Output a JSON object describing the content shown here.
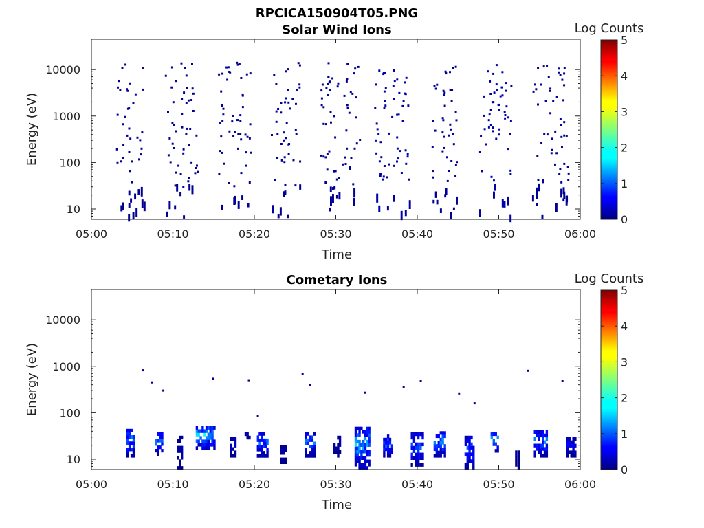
{
  "figure": {
    "title": "RPCICA150904T05.PNG"
  },
  "colormap": {
    "name": "jet",
    "colorbar_label": "Log Counts",
    "range": [
      0,
      5
    ],
    "ticks": [
      "0",
      "1",
      "2",
      "3",
      "4",
      "5"
    ]
  },
  "chart_data": [
    {
      "type": "heatmap",
      "title": "Solar Wind Ions",
      "xlabel": "Time",
      "ylabel": "Energy (eV)",
      "xlim": [
        "05:00",
        "06:00"
      ],
      "ylim": [
        6,
        45000
      ],
      "y_scale": "log",
      "x_ticks": [
        "05:00",
        "05:10",
        "05:20",
        "05:30",
        "05:40",
        "05:50",
        "06:00"
      ],
      "y_ticks": [
        "10",
        "100",
        "1000",
        "10000"
      ],
      "colorbar": {
        "label": "Log Counts",
        "min": 0,
        "max": 5
      },
      "bursts": [
        {
          "start_min": 3.0,
          "end_min": 6.5,
          "mean_log_counts": 0.1
        },
        {
          "start_min": 9.0,
          "end_min": 13.0,
          "mean_log_counts": 0.1
        },
        {
          "start_min": 15.5,
          "end_min": 19.5,
          "mean_log_counts": 0.1
        },
        {
          "start_min": 22.0,
          "end_min": 25.5,
          "mean_log_counts": 0.1
        },
        {
          "start_min": 28.0,
          "end_min": 33.0,
          "mean_log_counts": 0.1
        },
        {
          "start_min": 34.5,
          "end_min": 39.0,
          "mean_log_counts": 0.2
        },
        {
          "start_min": 41.5,
          "end_min": 45.0,
          "mean_log_counts": 0.1
        },
        {
          "start_min": 47.5,
          "end_min": 51.5,
          "mean_log_counts": 0.2
        },
        {
          "start_min": 54.0,
          "end_min": 58.5,
          "mean_log_counts": 0.1
        }
      ],
      "energy_range_eV": [
        6,
        14000
      ]
    },
    {
      "type": "heatmap",
      "title": "Cometary Ions",
      "xlabel": "Time",
      "ylabel": "Energy (eV)",
      "xlim": [
        "05:00",
        "06:00"
      ],
      "ylim": [
        6,
        45000
      ],
      "y_scale": "log",
      "x_ticks": [
        "05:00",
        "05:10",
        "05:20",
        "05:30",
        "05:40",
        "05:50",
        "06:00"
      ],
      "y_ticks": [
        "10",
        "100",
        "1000",
        "10000"
      ],
      "colorbar": {
        "label": "Log Counts",
        "min": 0,
        "max": 5
      },
      "patches": [
        {
          "start_min": 4.3,
          "end_min": 5.3,
          "e_low": 11,
          "e_high": 45,
          "peak_log_counts": 1.8
        },
        {
          "start_min": 7.8,
          "end_min": 8.8,
          "e_low": 12,
          "e_high": 38,
          "peak_log_counts": 1.6
        },
        {
          "start_min": 10.5,
          "end_min": 11.2,
          "e_low": 6,
          "e_high": 32,
          "peak_log_counts": 0.3
        },
        {
          "start_min": 12.8,
          "end_min": 15.2,
          "e_low": 16,
          "e_high": 52,
          "peak_log_counts": 2.2
        },
        {
          "start_min": 17.0,
          "end_min": 17.8,
          "e_low": 11,
          "e_high": 30,
          "peak_log_counts": 0.6
        },
        {
          "start_min": 18.8,
          "end_min": 19.5,
          "e_low": 27,
          "e_high": 38,
          "peak_log_counts": 0.5
        },
        {
          "start_min": 20.3,
          "end_min": 21.7,
          "e_low": 11,
          "e_high": 38,
          "peak_log_counts": 1.4
        },
        {
          "start_min": 23.2,
          "end_min": 24.0,
          "e_low": 8,
          "e_high": 20,
          "peak_log_counts": 0.3
        },
        {
          "start_min": 26.2,
          "end_min": 27.5,
          "e_low": 11,
          "e_high": 38,
          "peak_log_counts": 1.5
        },
        {
          "start_min": 29.7,
          "end_min": 30.6,
          "e_low": 11,
          "e_high": 32,
          "peak_log_counts": 0.4
        },
        {
          "start_min": 32.3,
          "end_min": 34.2,
          "e_low": 6,
          "e_high": 50,
          "peak_log_counts": 1.9
        },
        {
          "start_min": 35.8,
          "end_min": 37.0,
          "e_low": 11,
          "e_high": 34,
          "peak_log_counts": 1.4
        },
        {
          "start_min": 39.2,
          "end_min": 40.8,
          "e_low": 7,
          "e_high": 38,
          "peak_log_counts": 1.3
        },
        {
          "start_min": 42.0,
          "end_min": 43.5,
          "e_low": 11,
          "e_high": 40,
          "peak_log_counts": 1.6
        },
        {
          "start_min": 45.8,
          "end_min": 47.0,
          "e_low": 6,
          "e_high": 32,
          "peak_log_counts": 1.2
        },
        {
          "start_min": 49.0,
          "end_min": 50.0,
          "e_low": 14,
          "e_high": 38,
          "peak_log_counts": 1.8
        },
        {
          "start_min": 52.0,
          "end_min": 52.6,
          "e_low": 6,
          "e_high": 18,
          "peak_log_counts": 0.2
        },
        {
          "start_min": 54.3,
          "end_min": 56.0,
          "e_low": 11,
          "e_high": 42,
          "peak_log_counts": 1.5
        },
        {
          "start_min": 58.3,
          "end_min": 59.5,
          "e_low": 11,
          "e_high": 30,
          "peak_log_counts": 0.8
        }
      ],
      "sparse_high_energy_points": [
        {
          "t_min": 6.2,
          "e": 820
        },
        {
          "t_min": 7.3,
          "e": 450
        },
        {
          "t_min": 8.7,
          "e": 300
        },
        {
          "t_min": 14.8,
          "e": 540
        },
        {
          "t_min": 19.2,
          "e": 500
        },
        {
          "t_min": 20.3,
          "e": 85
        },
        {
          "t_min": 25.8,
          "e": 690
        },
        {
          "t_min": 26.7,
          "e": 390
        },
        {
          "t_min": 33.5,
          "e": 270
        },
        {
          "t_min": 38.2,
          "e": 360
        },
        {
          "t_min": 40.3,
          "e": 480
        },
        {
          "t_min": 45.0,
          "e": 260
        },
        {
          "t_min": 46.9,
          "e": 160
        },
        {
          "t_min": 53.5,
          "e": 800
        },
        {
          "t_min": 57.7,
          "e": 490
        }
      ]
    }
  ]
}
